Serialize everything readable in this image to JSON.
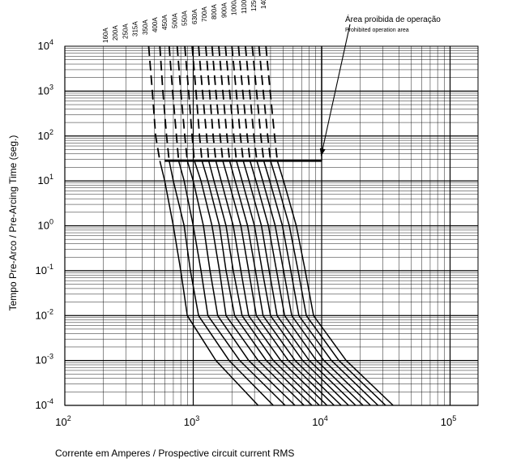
{
  "chart_data": {
    "type": "line",
    "title": "",
    "xlabel": "Corrente em Amperes / Prospective circuit current RMS",
    "ylabel": "Tempo Pre-Arco / Pre-Arcing Time (seg.)",
    "x_scale": "log",
    "y_scale": "log",
    "xlim": [
      100,
      250000
    ],
    "ylim": [
      0.0001,
      10000
    ],
    "grid": true,
    "x_ticks": [
      {
        "value": 100,
        "base": "10",
        "exp": "2"
      },
      {
        "value": 1000,
        "base": "10",
        "exp": "3"
      },
      {
        "value": 10000,
        "base": "10",
        "exp": "4"
      },
      {
        "value": 100000,
        "base": "10",
        "exp": "5"
      }
    ],
    "y_ticks": [
      {
        "value": 10000,
        "base": "10",
        "exp": "4"
      },
      {
        "value": 1000,
        "base": "10",
        "exp": "3"
      },
      {
        "value": 100,
        "base": "10",
        "exp": "2"
      },
      {
        "value": 10,
        "base": "10",
        "exp": "1"
      },
      {
        "value": 1,
        "base": "10",
        "exp": "0"
      },
      {
        "value": 0.1,
        "base": "10",
        "exp": "-1"
      },
      {
        "value": 0.01,
        "base": "10",
        "exp": "-2"
      },
      {
        "value": 0.001,
        "base": "10",
        "exp": "-3"
      },
      {
        "value": 0.0001,
        "base": "10",
        "exp": "-4"
      }
    ],
    "annotations": {
      "prohibited_area_pt": "Área proibida de operação",
      "prohibited_area_en": "Prohibited operation area",
      "arrow_target": {
        "x": 9900,
        "y": 28
      },
      "boundary_line": {
        "x_from": 600,
        "x_to": 10000,
        "y": 28
      }
    },
    "series": [
      {
        "name": "160A",
        "points": [
          [
            450,
            10000
          ],
          [
            480,
            1000
          ],
          [
            510,
            100
          ],
          [
            550,
            28
          ],
          [
            600,
            10
          ],
          [
            700,
            1
          ],
          [
            800,
            0.1
          ],
          [
            900,
            0.01
          ],
          [
            1500,
            0.001
          ],
          [
            3200,
            0.0001
          ]
        ]
      },
      {
        "name": "200A",
        "points": [
          [
            550,
            10000
          ],
          [
            580,
            1000
          ],
          [
            620,
            100
          ],
          [
            650,
            28
          ],
          [
            700,
            10
          ],
          [
            850,
            1
          ],
          [
            950,
            0.1
          ],
          [
            1100,
            0.01
          ],
          [
            1900,
            0.001
          ],
          [
            4200,
            0.0001
          ]
        ]
      },
      {
        "name": "250A",
        "points": [
          [
            650,
            10000
          ],
          [
            690,
            1000
          ],
          [
            740,
            100
          ],
          [
            770,
            28
          ],
          [
            850,
            10
          ],
          [
            1000,
            1
          ],
          [
            1150,
            0.1
          ],
          [
            1300,
            0.01
          ],
          [
            2300,
            0.001
          ],
          [
            5200,
            0.0001
          ]
        ]
      },
      {
        "name": "315A",
        "points": [
          [
            750,
            10000
          ],
          [
            800,
            1000
          ],
          [
            860,
            100
          ],
          [
            900,
            28
          ],
          [
            1000,
            10
          ],
          [
            1200,
            1
          ],
          [
            1350,
            0.1
          ],
          [
            1550,
            0.01
          ],
          [
            2700,
            0.001
          ],
          [
            6200,
            0.0001
          ]
        ]
      },
      {
        "name": "350A",
        "points": [
          [
            860,
            10000
          ],
          [
            920,
            1000
          ],
          [
            980,
            100
          ],
          [
            1020,
            28
          ],
          [
            1150,
            10
          ],
          [
            1400,
            1
          ],
          [
            1600,
            0.1
          ],
          [
            1800,
            0.01
          ],
          [
            3200,
            0.001
          ],
          [
            7300,
            0.0001
          ]
        ]
      },
      {
        "name": "400A",
        "points": [
          [
            980,
            10000
          ],
          [
            1050,
            1000
          ],
          [
            1120,
            100
          ],
          [
            1170,
            28
          ],
          [
            1300,
            10
          ],
          [
            1600,
            1
          ],
          [
            1800,
            0.1
          ],
          [
            2100,
            0.01
          ],
          [
            3700,
            0.001
          ],
          [
            8400,
            0.0001
          ]
        ]
      },
      {
        "name": "450A",
        "points": [
          [
            1100,
            10000
          ],
          [
            1180,
            1000
          ],
          [
            1270,
            100
          ],
          [
            1320,
            28
          ],
          [
            1450,
            10
          ],
          [
            1800,
            1
          ],
          [
            2050,
            0.1
          ],
          [
            2400,
            0.01
          ],
          [
            4200,
            0.001
          ],
          [
            9600,
            0.0001
          ]
        ]
      },
      {
        "name": "500A",
        "points": [
          [
            1250,
            10000
          ],
          [
            1340,
            1000
          ],
          [
            1430,
            100
          ],
          [
            1500,
            28
          ],
          [
            1650,
            10
          ],
          [
            2050,
            1
          ],
          [
            2350,
            0.1
          ],
          [
            2700,
            0.01
          ],
          [
            4800,
            0.001
          ],
          [
            11000,
            0.0001
          ]
        ]
      },
      {
        "name": "550A",
        "points": [
          [
            1400,
            10000
          ],
          [
            1500,
            1000
          ],
          [
            1620,
            100
          ],
          [
            1700,
            28
          ],
          [
            1880,
            10
          ],
          [
            2350,
            1
          ],
          [
            2700,
            0.1
          ],
          [
            3100,
            0.01
          ],
          [
            5500,
            0.001
          ],
          [
            12500,
            0.0001
          ]
        ]
      },
      {
        "name": "630A",
        "points": [
          [
            1580,
            10000
          ],
          [
            1700,
            1000
          ],
          [
            1830,
            100
          ],
          [
            1920,
            28
          ],
          [
            2120,
            10
          ],
          [
            2650,
            1
          ],
          [
            3050,
            0.1
          ],
          [
            3500,
            0.01
          ],
          [
            6200,
            0.001
          ],
          [
            14200,
            0.0001
          ]
        ]
      },
      {
        "name": "700A",
        "points": [
          [
            1780,
            10000
          ],
          [
            1920,
            1000
          ],
          [
            2070,
            100
          ],
          [
            2170,
            28
          ],
          [
            2400,
            10
          ],
          [
            3000,
            1
          ],
          [
            3450,
            0.1
          ],
          [
            4000,
            0.01
          ],
          [
            7100,
            0.001
          ],
          [
            16200,
            0.0001
          ]
        ]
      },
      {
        "name": "800A",
        "points": [
          [
            2000,
            10000
          ],
          [
            2160,
            1000
          ],
          [
            2330,
            100
          ],
          [
            2450,
            28
          ],
          [
            2720,
            10
          ],
          [
            3400,
            1
          ],
          [
            3900,
            0.1
          ],
          [
            4500,
            0.01
          ],
          [
            8000,
            0.001
          ],
          [
            18400,
            0.0001
          ]
        ]
      },
      {
        "name": "900A",
        "points": [
          [
            2250,
            10000
          ],
          [
            2430,
            1000
          ],
          [
            2630,
            100
          ],
          [
            2770,
            28
          ],
          [
            3080,
            10
          ],
          [
            3850,
            1
          ],
          [
            4450,
            0.1
          ],
          [
            5150,
            0.01
          ],
          [
            9100,
            0.001
          ],
          [
            21000,
            0.0001
          ]
        ]
      },
      {
        "name": "1000A",
        "points": [
          [
            2550,
            10000
          ],
          [
            2750,
            1000
          ],
          [
            2970,
            100
          ],
          [
            3130,
            28
          ],
          [
            3480,
            10
          ],
          [
            4350,
            1
          ],
          [
            5050,
            0.1
          ],
          [
            5850,
            0.01
          ],
          [
            10400,
            0.001
          ],
          [
            24000,
            0.0001
          ]
        ]
      },
      {
        "name": "1100A",
        "points": [
          [
            2880,
            10000
          ],
          [
            3110,
            1000
          ],
          [
            3360,
            100
          ],
          [
            3540,
            28
          ],
          [
            3940,
            10
          ],
          [
            4950,
            1
          ],
          [
            5750,
            0.1
          ],
          [
            6650,
            0.01
          ],
          [
            11900,
            0.001
          ],
          [
            27500,
            0.0001
          ]
        ]
      },
      {
        "name": "1250A",
        "points": [
          [
            3250,
            10000
          ],
          [
            3510,
            1000
          ],
          [
            3800,
            100
          ],
          [
            4000,
            28
          ],
          [
            4460,
            10
          ],
          [
            5600,
            1
          ],
          [
            6550,
            0.1
          ],
          [
            7600,
            0.01
          ],
          [
            13600,
            0.001
          ],
          [
            31500,
            0.0001
          ]
        ]
      },
      {
        "name": "1400A",
        "points": [
          [
            3680,
            10000
          ],
          [
            3970,
            1000
          ],
          [
            4300,
            100
          ],
          [
            4520,
            28
          ],
          [
            5050,
            10
          ],
          [
            6350,
            1
          ],
          [
            7450,
            0.1
          ],
          [
            8650,
            0.01
          ],
          [
            15500,
            0.001
          ],
          [
            36000,
            0.0001
          ]
        ]
      }
    ]
  }
}
